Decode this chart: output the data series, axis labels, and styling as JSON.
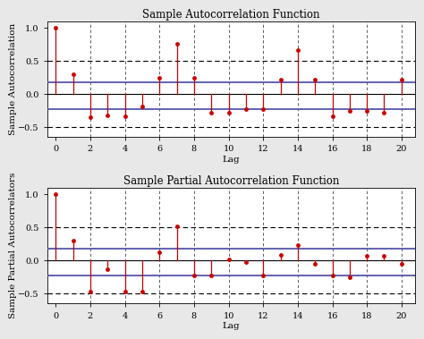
{
  "acf_title": "Sample Autocorrelation Function",
  "pacf_title": "Sample Partial Autocorrelation Function",
  "acf_ylabel": "Sample Autocorrelation",
  "pacf_ylabel": "Sample Partial Autocorrelators",
  "xlabel": "Lag",
  "acf_values": [
    1.0,
    0.3,
    -0.35,
    -0.32,
    -0.33,
    -0.18,
    0.25,
    0.76,
    0.25,
    -0.28,
    -0.28,
    -0.22,
    -0.22,
    0.22,
    0.66,
    0.22,
    -0.33,
    -0.25,
    -0.25,
    -0.28,
    0.22
  ],
  "pacf_values": [
    1.0,
    0.3,
    -0.47,
    -0.13,
    -0.47,
    -0.47,
    0.13,
    0.52,
    -0.22,
    -0.22,
    0.02,
    -0.02,
    -0.22,
    0.08,
    0.23,
    -0.05,
    -0.22,
    -0.25,
    0.07,
    0.07,
    -0.05
  ],
  "lags": [
    0,
    1,
    2,
    3,
    4,
    5,
    6,
    7,
    8,
    9,
    10,
    11,
    12,
    13,
    14,
    15,
    16,
    17,
    18,
    19,
    20
  ],
  "confidence_upper": 0.18,
  "confidence_lower": -0.22,
  "dashed_upper": 0.5,
  "dashed_lower": -0.5,
  "stem_color": "#cc0000",
  "marker_color": "#cc0000",
  "conf_band_color": "#5555aa",
  "zero_line_color": "#000000",
  "dashed_line_color": "#000000",
  "figure_facecolor": "#e8e8e8",
  "axes_facecolor": "#ffffff",
  "ylim": [
    -0.65,
    1.1
  ],
  "xlim": [
    -0.5,
    20.8
  ],
  "xticks": [
    0,
    2,
    4,
    6,
    8,
    10,
    12,
    14,
    16,
    18,
    20
  ],
  "yticks": [
    -0.5,
    0.0,
    0.5,
    1.0
  ],
  "grid_xticks": [
    2,
    4,
    6,
    8,
    10,
    12,
    14,
    16,
    18,
    20
  ],
  "title_fontsize": 8.5,
  "label_fontsize": 7.5,
  "tick_fontsize": 7
}
